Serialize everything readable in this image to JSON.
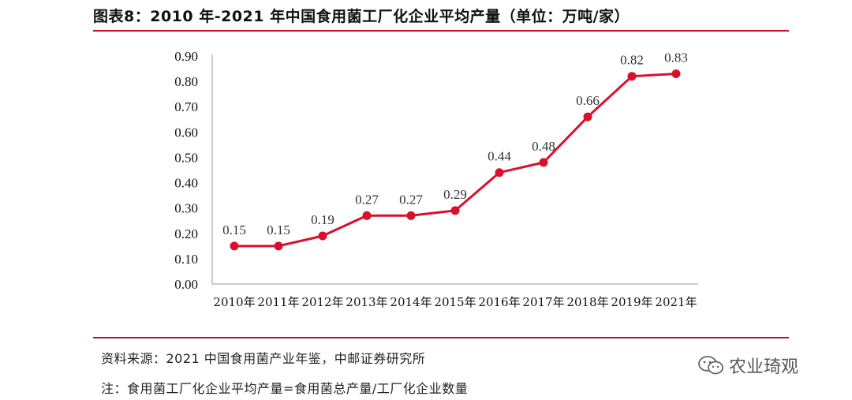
{
  "header": {
    "title": "图表8：2010 年-2021 年中国食用菌工厂化企业平均产量（单位：万吨/家）"
  },
  "footer": {
    "source": "资料来源：2021 中国食用菌产业年鉴，中邮证券研究所",
    "note": "注：食用菌工厂化企业平均产量=食用菌总产量/工厂化企业数量"
  },
  "brand": {
    "icon": "wechat-icon",
    "name": "农业琦观"
  },
  "chart_data": {
    "type": "line",
    "categories": [
      "2010年",
      "2011年",
      "2012年",
      "2013年",
      "2014年",
      "2015年",
      "2016年",
      "2017年",
      "2018年",
      "2019年",
      "2021年"
    ],
    "values": [
      0.15,
      0.15,
      0.19,
      0.27,
      0.27,
      0.29,
      0.44,
      0.48,
      0.66,
      0.82,
      0.83
    ],
    "data_labels": [
      "0.15",
      "0.15",
      "0.19",
      "0.27",
      "0.27",
      "0.29",
      "0.44",
      "0.48",
      "0.66",
      "0.82",
      "0.83"
    ],
    "yticks": [
      "0.00",
      "0.10",
      "0.20",
      "0.30",
      "0.40",
      "0.50",
      "0.60",
      "0.70",
      "0.80",
      "0.90"
    ],
    "ylim": [
      0,
      0.9
    ],
    "grid": false,
    "legend": "none",
    "line_color": "#d9102a"
  }
}
